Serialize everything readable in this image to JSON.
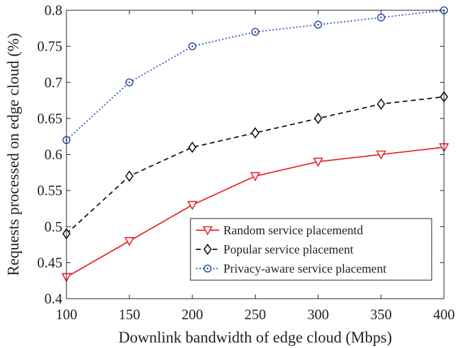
{
  "chart_data": {
    "type": "line",
    "title": "",
    "xlabel": "Downlink bandwidth of edge cloud (Mbps)",
    "ylabel": "Requests processed on edge cloud (%)",
    "x": [
      100,
      150,
      200,
      250,
      300,
      350,
      400
    ],
    "xlim": [
      100,
      400
    ],
    "ylim": [
      0.4,
      0.8
    ],
    "xticks": [
      100,
      150,
      200,
      250,
      300,
      350,
      400
    ],
    "yticks": [
      0.4,
      0.45,
      0.5,
      0.55,
      0.6,
      0.65,
      0.7,
      0.75,
      0.8
    ],
    "xtick_labels": [
      "100",
      "150",
      "200",
      "250",
      "300",
      "350",
      "400"
    ],
    "ytick_labels": [
      "0.4",
      "0.45",
      "0.5",
      "0.55",
      "0.6",
      "0.65",
      "0.7",
      "0.75",
      "0.8"
    ],
    "grid": false,
    "legend_position": "bottom-right",
    "series": [
      {
        "name": "Random service placementd",
        "values": [
          0.43,
          0.48,
          0.53,
          0.57,
          0.59,
          0.6,
          0.61
        ],
        "color": "#e8262a",
        "line_style": "solid",
        "marker": "triangle-down"
      },
      {
        "name": "Popular service placement",
        "values": [
          0.49,
          0.57,
          0.61,
          0.63,
          0.65,
          0.67,
          0.68
        ],
        "color": "#111111",
        "line_style": "dashed",
        "marker": "diamond"
      },
      {
        "name": "Privacy-aware service placement",
        "values": [
          0.62,
          0.7,
          0.75,
          0.77,
          0.78,
          0.79,
          0.8
        ],
        "color": "#3050a8",
        "line_style": "dotted",
        "marker": "circle-dot"
      }
    ]
  }
}
